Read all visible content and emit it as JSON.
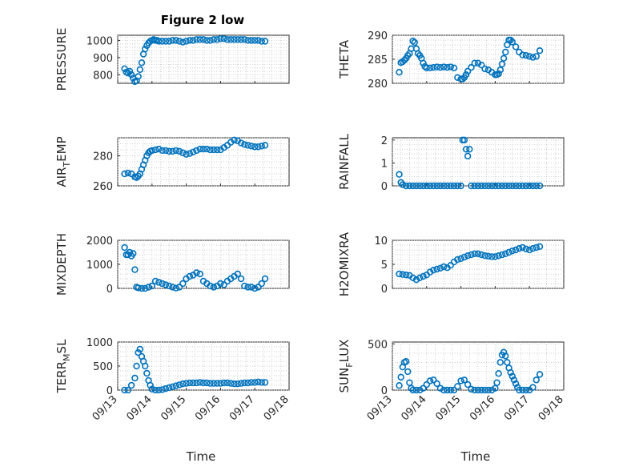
{
  "figure": {
    "title": "Figure 2 low",
    "xlabel": "Time"
  },
  "marker_color": "#0072BD",
  "x_ticks": [
    "09/13",
    "09/14",
    "09/15",
    "09/16",
    "09/17",
    "09/18"
  ],
  "chart_data": [
    {
      "type": "scatter",
      "name": "pressure",
      "ylabel": "PRESSURE",
      "xlim": [
        13,
        18
      ],
      "ylim": [
        750,
        1030
      ],
      "yticks": [
        800,
        900,
        1000
      ],
      "ytick_labels": [
        "800",
        "900",
        "1000"
      ],
      "x": [
        13.2,
        13.25,
        13.3,
        13.35,
        13.4,
        13.45,
        13.5,
        13.55,
        13.6,
        13.65,
        13.7,
        13.75,
        13.8,
        13.85,
        13.9,
        13.95,
        14.0,
        14.05,
        14.1,
        14.15,
        14.2,
        14.3,
        14.4,
        14.5,
        14.6,
        14.7,
        14.8,
        14.9,
        15.0,
        15.1,
        15.2,
        15.3,
        15.4,
        15.5,
        15.6,
        15.7,
        15.8,
        15.9,
        16.0,
        16.1,
        16.2,
        16.3,
        16.4,
        16.5,
        16.6,
        16.7,
        16.8,
        16.9,
        17.0,
        17.1,
        17.2,
        17.3
      ],
      "y": [
        835,
        815,
        810,
        820,
        800,
        780,
        760,
        765,
        790,
        830,
        870,
        920,
        950,
        970,
        985,
        995,
        1000,
        1005,
        1000,
        1000,
        995,
        995,
        995,
        995,
        1000,
        1000,
        995,
        990,
        995,
        1000,
        1000,
        1005,
        1005,
        1005,
        1000,
        1000,
        1005,
        1005,
        1010,
        1010,
        1005,
        1005,
        1005,
        1005,
        1005,
        1005,
        1000,
        1000,
        1000,
        1000,
        995,
        995
      ]
    },
    {
      "type": "scatter",
      "name": "theta",
      "ylabel": "THETA",
      "xlim": [
        13,
        18
      ],
      "ylim": [
        280,
        290
      ],
      "yticks": [
        280,
        285,
        290
      ],
      "ytick_labels": [
        "280",
        "285",
        "290"
      ],
      "x": [
        13.2,
        13.25,
        13.3,
        13.35,
        13.4,
        13.45,
        13.5,
        13.55,
        13.6,
        13.65,
        13.7,
        13.75,
        13.8,
        13.85,
        13.9,
        13.95,
        14.0,
        14.1,
        14.2,
        14.3,
        14.4,
        14.5,
        14.6,
        14.7,
        14.8,
        14.9,
        15.0,
        15.05,
        15.1,
        15.15,
        15.2,
        15.3,
        15.4,
        15.5,
        15.6,
        15.7,
        15.8,
        15.9,
        16.0,
        16.05,
        16.1,
        16.15,
        16.2,
        16.25,
        16.3,
        16.35,
        16.4,
        16.45,
        16.5,
        16.6,
        16.7,
        16.8,
        16.9,
        17.0,
        17.1,
        17.2,
        17.3
      ],
      "y": [
        282.3,
        284.3,
        284.5,
        284.8,
        285.2,
        285.8,
        286.2,
        287.2,
        288.8,
        288.5,
        287.2,
        286.2,
        285.8,
        285.2,
        284.2,
        283.5,
        283.2,
        283.2,
        283.3,
        283.4,
        283.3,
        283.4,
        283.3,
        283.4,
        283.2,
        281.2,
        280.9,
        280.9,
        281.2,
        281.8,
        282.5,
        283.3,
        284.2,
        284.2,
        283.8,
        283.0,
        282.8,
        282.3,
        281.8,
        281.8,
        282.0,
        282.8,
        284.0,
        285.2,
        286.5,
        288.0,
        289.0,
        289.0,
        288.6,
        287.6,
        286.5,
        285.9,
        285.8,
        285.6,
        285.4,
        285.6,
        286.8
      ]
    },
    {
      "type": "scatter",
      "name": "air_temp",
      "ylabel": "AIR_TEMP",
      "xlim": [
        13,
        18
      ],
      "ylim": [
        260,
        292
      ],
      "yticks": [
        260,
        280
      ],
      "ytick_labels": [
        "260",
        "280"
      ],
      "x": [
        13.2,
        13.3,
        13.4,
        13.5,
        13.55,
        13.6,
        13.65,
        13.7,
        13.75,
        13.8,
        13.85,
        13.9,
        13.95,
        14.0,
        14.1,
        14.2,
        14.3,
        14.4,
        14.5,
        14.6,
        14.7,
        14.8,
        14.9,
        15.0,
        15.1,
        15.2,
        15.3,
        15.4,
        15.5,
        15.6,
        15.7,
        15.8,
        15.9,
        16.0,
        16.1,
        16.2,
        16.3,
        16.4,
        16.5,
        16.6,
        16.7,
        16.8,
        16.9,
        17.0,
        17.1,
        17.2,
        17.3
      ],
      "y": [
        268,
        268.5,
        268,
        266,
        265.5,
        266.5,
        268,
        271,
        274,
        277,
        280,
        282,
        283,
        283.5,
        284,
        284.5,
        283.5,
        283.5,
        283,
        283,
        283.5,
        283,
        282,
        281,
        281.5,
        282.5,
        283.5,
        284.5,
        284.5,
        284.5,
        284,
        284,
        284,
        284,
        285.5,
        287,
        289,
        290.5,
        290,
        288.5,
        287.5,
        287,
        286.5,
        286,
        286,
        286.5,
        287
      ]
    },
    {
      "type": "scatter",
      "name": "rainfall",
      "ylabel": "RAINFALL",
      "xlim": [
        13,
        18
      ],
      "ylim": [
        0,
        2.1
      ],
      "yticks": [
        0,
        1,
        2
      ],
      "ytick_labels": [
        "0",
        "1",
        "2"
      ],
      "x": [
        13.2,
        13.25,
        13.3,
        13.4,
        13.5,
        13.6,
        13.7,
        13.8,
        13.9,
        14.0,
        14.1,
        14.2,
        14.3,
        14.4,
        14.5,
        14.6,
        14.7,
        14.8,
        14.9,
        15.0,
        15.05,
        15.1,
        15.15,
        15.2,
        15.25,
        15.3,
        15.4,
        15.5,
        15.6,
        15.7,
        15.8,
        15.9,
        16.0,
        16.1,
        16.2,
        16.3,
        16.4,
        16.5,
        16.6,
        16.7,
        16.8,
        16.9,
        17.0,
        17.1,
        17.2,
        17.3
      ],
      "y": [
        0.5,
        0.15,
        0.05,
        0,
        0,
        0,
        0,
        0,
        0,
        0,
        0,
        0,
        0,
        0,
        0,
        0,
        0,
        0,
        0,
        0,
        2.0,
        2.0,
        1.6,
        1.3,
        1.6,
        0,
        0,
        0,
        0,
        0,
        0,
        0,
        0,
        0,
        0,
        0,
        0,
        0,
        0,
        0,
        0,
        0,
        0,
        0,
        0,
        0
      ]
    },
    {
      "type": "scatter",
      "name": "mixdepth",
      "ylabel": "MIXDEPTH",
      "xlim": [
        13,
        18
      ],
      "ylim": [
        0,
        2000
      ],
      "yticks": [
        0,
        1000,
        2000
      ],
      "ytick_labels": [
        "0",
        "1000",
        "2000"
      ],
      "x": [
        13.2,
        13.25,
        13.3,
        13.35,
        13.4,
        13.45,
        13.5,
        13.55,
        13.6,
        13.7,
        13.8,
        13.9,
        14.0,
        14.1,
        14.2,
        14.3,
        14.4,
        14.5,
        14.6,
        14.7,
        14.8,
        14.9,
        15.0,
        15.1,
        15.2,
        15.3,
        15.4,
        15.5,
        15.6,
        15.7,
        15.8,
        15.9,
        16.0,
        16.1,
        16.2,
        16.3,
        16.4,
        16.5,
        16.6,
        16.7,
        16.8,
        16.9,
        17.0,
        17.1,
        17.2,
        17.3
      ],
      "y": [
        1700,
        1400,
        1400,
        1500,
        1350,
        1450,
        780,
        50,
        20,
        0,
        0,
        50,
        100,
        300,
        250,
        200,
        150,
        100,
        50,
        10,
        50,
        200,
        400,
        500,
        550,
        650,
        600,
        300,
        200,
        100,
        50,
        100,
        200,
        150,
        300,
        400,
        500,
        600,
        400,
        100,
        50,
        50,
        0,
        50,
        200,
        400
      ]
    },
    {
      "type": "scatter",
      "name": "h2omixra",
      "ylabel": "H2OMIXRA",
      "xlim": [
        13,
        18
      ],
      "ylim": [
        0,
        10
      ],
      "yticks": [
        0,
        5,
        10
      ],
      "ytick_labels": [
        "0",
        "5",
        "10"
      ],
      "x": [
        13.2,
        13.3,
        13.4,
        13.5,
        13.6,
        13.7,
        13.8,
        13.9,
        14.0,
        14.1,
        14.2,
        14.3,
        14.4,
        14.5,
        14.6,
        14.7,
        14.8,
        14.9,
        15.0,
        15.1,
        15.2,
        15.3,
        15.4,
        15.5,
        15.6,
        15.7,
        15.8,
        15.9,
        16.0,
        16.1,
        16.2,
        16.3,
        16.4,
        16.5,
        16.6,
        16.7,
        16.8,
        16.9,
        17.0,
        17.1,
        17.2,
        17.3
      ],
      "y": [
        3.0,
        2.9,
        2.8,
        2.7,
        2.2,
        1.8,
        2.2,
        2.5,
        2.8,
        3.4,
        3.8,
        4.0,
        4.2,
        4.5,
        4.3,
        4.8,
        5.5,
        6.0,
        6.2,
        6.5,
        6.8,
        7.0,
        7.2,
        7.2,
        7.0,
        6.8,
        6.7,
        6.6,
        6.6,
        6.8,
        7.0,
        7.2,
        7.5,
        7.8,
        8.0,
        8.3,
        8.5,
        8.2,
        8.0,
        8.3,
        8.5,
        8.7
      ]
    },
    {
      "type": "scatter",
      "name": "terr_msl",
      "ylabel": "TERR_MSL",
      "xlim": [
        13,
        18
      ],
      "ylim": [
        0,
        1000
      ],
      "yticks": [
        0,
        500,
        1000
      ],
      "ytick_labels": [
        "0",
        "500",
        "1000"
      ],
      "x": [
        13.2,
        13.3,
        13.4,
        13.5,
        13.55,
        13.6,
        13.65,
        13.7,
        13.75,
        13.8,
        13.85,
        13.9,
        13.95,
        14.0,
        14.1,
        14.2,
        14.3,
        14.4,
        14.5,
        14.6,
        14.7,
        14.8,
        14.9,
        15.0,
        15.1,
        15.2,
        15.3,
        15.4,
        15.5,
        15.6,
        15.7,
        15.8,
        15.9,
        16.0,
        16.1,
        16.2,
        16.3,
        16.4,
        16.5,
        16.6,
        16.7,
        16.8,
        16.9,
        17.0,
        17.1,
        17.2,
        17.3
      ],
      "y": [
        0,
        0,
        100,
        250,
        500,
        780,
        850,
        700,
        600,
        500,
        350,
        200,
        100,
        20,
        0,
        0,
        10,
        30,
        50,
        70,
        90,
        110,
        130,
        140,
        150,
        150,
        150,
        160,
        150,
        150,
        140,
        140,
        140,
        140,
        150,
        150,
        140,
        130,
        130,
        140,
        150,
        150,
        160,
        160,
        170,
        160,
        160
      ]
    },
    {
      "type": "scatter",
      "name": "sun_flux",
      "ylabel": "SUN_FLUX",
      "xlim": [
        13,
        18
      ],
      "ylim": [
        0,
        520
      ],
      "yticks": [
        0,
        500
      ],
      "ytick_labels": [
        "0",
        "500"
      ],
      "x": [
        13.2,
        13.25,
        13.3,
        13.35,
        13.4,
        13.45,
        13.5,
        13.55,
        13.6,
        13.7,
        13.8,
        13.9,
        14.0,
        14.1,
        14.2,
        14.3,
        14.4,
        14.5,
        14.6,
        14.7,
        14.8,
        14.9,
        15.0,
        15.1,
        15.2,
        15.3,
        15.4,
        15.5,
        15.6,
        15.7,
        15.8,
        15.9,
        16.0,
        16.05,
        16.1,
        16.15,
        16.2,
        16.25,
        16.3,
        16.35,
        16.4,
        16.45,
        16.5,
        16.55,
        16.6,
        16.65,
        16.7,
        16.8,
        16.9,
        17.0,
        17.1,
        17.2,
        17.3
      ],
      "y": [
        50,
        140,
        250,
        300,
        310,
        200,
        80,
        20,
        0,
        0,
        0,
        20,
        60,
        100,
        110,
        70,
        20,
        0,
        0,
        0,
        0,
        40,
        100,
        110,
        60,
        10,
        0,
        0,
        0,
        0,
        0,
        0,
        20,
        80,
        180,
        300,
        380,
        410,
        370,
        300,
        240,
        190,
        150,
        110,
        70,
        30,
        0,
        0,
        0,
        0,
        30,
        110,
        170
      ]
    }
  ]
}
